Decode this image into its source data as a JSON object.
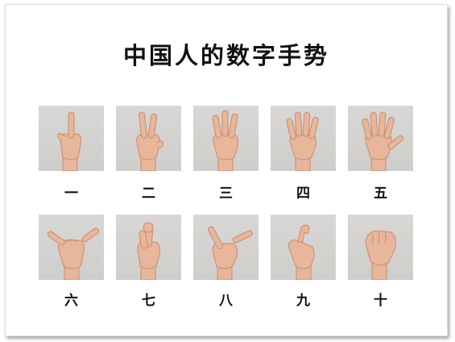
{
  "title": "中国人的数字手势",
  "gestures": [
    {
      "number": "一",
      "icon": "one-finger-gesture-icon"
    },
    {
      "number": "二",
      "icon": "two-fingers-gesture-icon"
    },
    {
      "number": "三",
      "icon": "three-fingers-gesture-icon"
    },
    {
      "number": "四",
      "icon": "four-fingers-gesture-icon"
    },
    {
      "number": "五",
      "icon": "five-fingers-gesture-icon"
    },
    {
      "number": "六",
      "icon": "six-gesture-icon"
    },
    {
      "number": "七",
      "icon": "seven-gesture-icon"
    },
    {
      "number": "八",
      "icon": "eight-gesture-icon"
    },
    {
      "number": "九",
      "icon": "nine-gesture-icon"
    },
    {
      "number": "十",
      "icon": "ten-fist-gesture-icon"
    }
  ],
  "colors": {
    "skin": "#e8b69a",
    "skin_shade": "#c98b6e",
    "tile_bg": "#d3d2cf"
  }
}
